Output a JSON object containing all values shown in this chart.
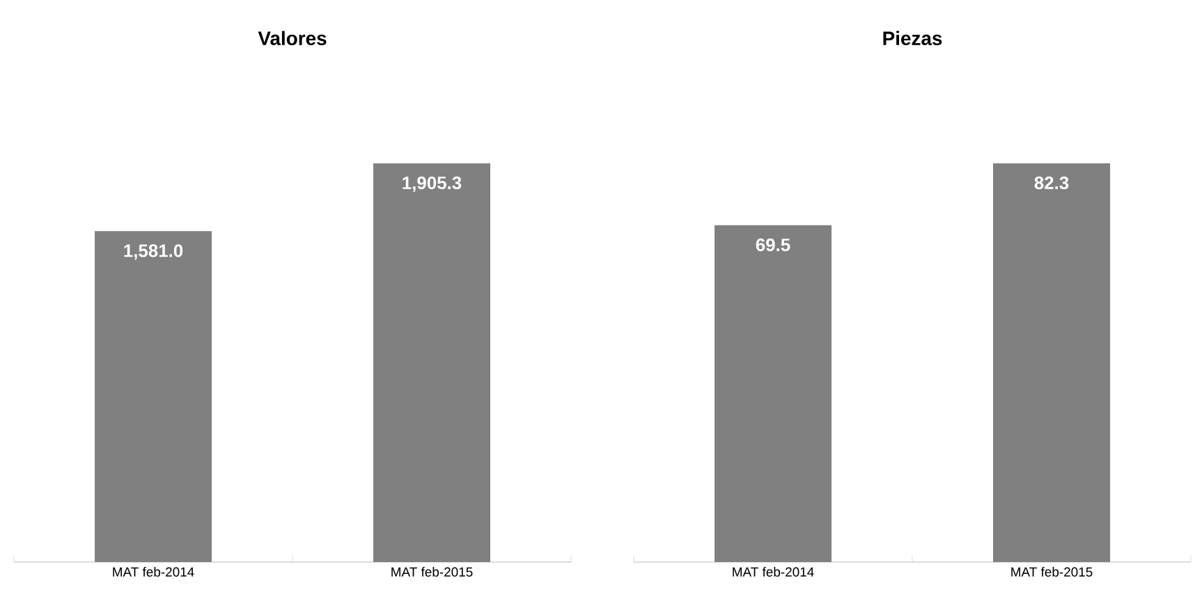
{
  "chart_data": [
    {
      "type": "bar",
      "title": "Valores",
      "categories": [
        "MAT feb-2014",
        "MAT feb-2015"
      ],
      "values": [
        1581.0,
        1905.3
      ],
      "value_labels": [
        "1,581.0",
        "1,905.3"
      ],
      "color": "#808080"
    },
    {
      "type": "bar",
      "title": "Piezas",
      "categories": [
        "MAT feb-2014",
        "MAT feb-2015"
      ],
      "values": [
        69.5,
        82.3
      ],
      "value_labels": [
        "69.5",
        "82.3"
      ],
      "color": "#808080"
    }
  ]
}
